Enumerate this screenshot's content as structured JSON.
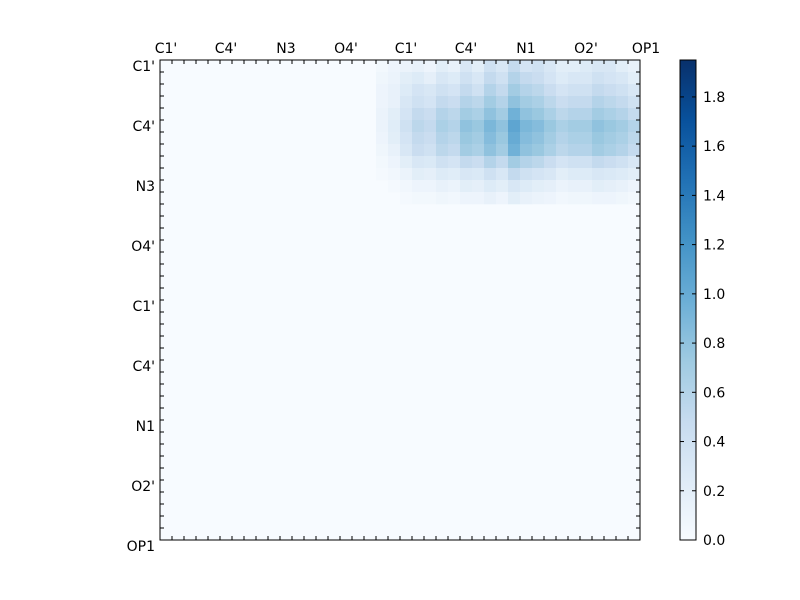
{
  "chart_data": {
    "type": "heatmap",
    "x_tick_labels": [
      "C1'",
      "C4'",
      "N3",
      "O4'",
      "C1'",
      "C4'",
      "N1",
      "O2'",
      "OP1"
    ],
    "y_tick_labels": [
      "C1'",
      "C4'",
      "N3",
      "O4'",
      "C1'",
      "C4'",
      "N1",
      "O2'",
      "OP1"
    ],
    "grid_size": 40,
    "colorbar": {
      "ticks": [
        "0.0",
        "0.2",
        "0.4",
        "0.6",
        "0.8",
        "1.0",
        "1.2",
        "1.4",
        "1.6",
        "1.8"
      ],
      "range": [
        0,
        1.95
      ]
    },
    "colormap": [
      "#f7fbff",
      "#deebf7",
      "#c6dbef",
      "#9ecae1",
      "#6baed6",
      "#4292c6",
      "#2171b5",
      "#08519c",
      "#08306b"
    ],
    "matrix": [
      [
        0,
        0,
        0,
        0,
        0,
        0,
        0,
        0,
        0,
        0,
        0,
        0,
        0,
        0,
        0,
        0,
        0,
        0,
        0.05,
        0.1,
        0.12,
        0.15,
        0.1,
        0.2,
        0.15,
        0.3,
        0.2,
        0.4,
        0.3,
        0.5,
        0.35,
        0.4,
        0.3,
        0.2,
        0.2,
        0.25,
        0.3,
        0.3,
        0.2,
        0.15
      ],
      [
        0,
        0,
        0,
        0,
        0,
        0,
        0,
        0,
        0,
        0,
        0,
        0,
        0,
        0,
        0,
        0,
        0,
        0,
        0.08,
        0.12,
        0.2,
        0.25,
        0.18,
        0.3,
        0.25,
        0.4,
        0.3,
        0.5,
        0.4,
        0.6,
        0.5,
        0.45,
        0.35,
        0.25,
        0.3,
        0.3,
        0.4,
        0.35,
        0.3,
        0.2
      ],
      [
        0,
        0,
        0,
        0,
        0,
        0,
        0,
        0,
        0,
        0,
        0,
        0,
        0,
        0,
        0,
        0,
        0,
        0,
        0.1,
        0.15,
        0.25,
        0.35,
        0.3,
        0.4,
        0.35,
        0.5,
        0.4,
        0.6,
        0.5,
        0.7,
        0.6,
        0.55,
        0.45,
        0.35,
        0.4,
        0.4,
        0.5,
        0.45,
        0.4,
        0.3
      ],
      [
        0,
        0,
        0,
        0,
        0,
        0,
        0,
        0,
        0,
        0,
        0,
        0,
        0,
        0,
        0,
        0,
        0,
        0,
        0.1,
        0.15,
        0.3,
        0.4,
        0.35,
        0.5,
        0.45,
        0.6,
        0.55,
        0.7,
        0.6,
        0.8,
        0.7,
        0.65,
        0.55,
        0.45,
        0.5,
        0.5,
        0.6,
        0.55,
        0.5,
        0.4
      ],
      [
        0,
        0,
        0,
        0,
        0,
        0,
        0,
        0,
        0,
        0,
        0,
        0,
        0,
        0,
        0,
        0,
        0,
        0,
        0.12,
        0.2,
        0.35,
        0.5,
        0.45,
        0.6,
        0.55,
        0.7,
        0.65,
        0.8,
        0.7,
        0.95,
        0.8,
        0.75,
        0.65,
        0.55,
        0.6,
        0.6,
        0.7,
        0.65,
        0.6,
        0.5
      ],
      [
        0,
        0,
        0,
        0,
        0,
        0,
        0,
        0,
        0,
        0,
        0,
        0,
        0,
        0,
        0,
        0,
        0,
        0,
        0.12,
        0.22,
        0.4,
        0.55,
        0.5,
        0.65,
        0.6,
        0.8,
        0.75,
        0.9,
        0.8,
        1.05,
        0.9,
        0.85,
        0.75,
        0.65,
        0.7,
        0.7,
        0.8,
        0.75,
        0.7,
        0.6
      ],
      [
        0,
        0,
        0,
        0,
        0,
        0,
        0,
        0,
        0,
        0,
        0,
        0,
        0,
        0,
        0,
        0,
        0,
        0,
        0.1,
        0.2,
        0.35,
        0.5,
        0.45,
        0.6,
        0.55,
        0.75,
        0.7,
        0.85,
        0.75,
        1.0,
        0.85,
        0.8,
        0.7,
        0.6,
        0.65,
        0.65,
        0.75,
        0.7,
        0.65,
        0.55
      ],
      [
        0,
        0,
        0,
        0,
        0,
        0,
        0,
        0,
        0,
        0,
        0,
        0,
        0,
        0,
        0,
        0,
        0,
        0,
        0.08,
        0.15,
        0.3,
        0.45,
        0.4,
        0.55,
        0.5,
        0.7,
        0.65,
        0.8,
        0.7,
        0.95,
        0.8,
        0.75,
        0.65,
        0.55,
        0.6,
        0.6,
        0.7,
        0.65,
        0.6,
        0.5
      ],
      [
        0,
        0,
        0,
        0,
        0,
        0,
        0,
        0,
        0,
        0,
        0,
        0,
        0,
        0,
        0,
        0,
        0,
        0,
        0.05,
        0.1,
        0.2,
        0.3,
        0.28,
        0.4,
        0.35,
        0.5,
        0.45,
        0.6,
        0.5,
        0.7,
        0.6,
        0.55,
        0.45,
        0.35,
        0.4,
        0.4,
        0.5,
        0.45,
        0.4,
        0.3
      ],
      [
        0,
        0,
        0,
        0,
        0,
        0,
        0,
        0,
        0,
        0,
        0,
        0,
        0,
        0,
        0,
        0,
        0,
        0,
        0.03,
        0.06,
        0.12,
        0.2,
        0.18,
        0.25,
        0.22,
        0.3,
        0.28,
        0.4,
        0.3,
        0.5,
        0.4,
        0.35,
        0.3,
        0.2,
        0.25,
        0.25,
        0.3,
        0.28,
        0.25,
        0.2
      ],
      [
        0,
        0,
        0,
        0,
        0,
        0,
        0,
        0,
        0,
        0,
        0,
        0,
        0,
        0,
        0,
        0,
        0,
        0,
        0,
        0.03,
        0.06,
        0.1,
        0.1,
        0.15,
        0.12,
        0.2,
        0.18,
        0.25,
        0.2,
        0.3,
        0.25,
        0.2,
        0.18,
        0.12,
        0.15,
        0.15,
        0.2,
        0.18,
        0.15,
        0.1
      ],
      [
        0,
        0,
        0,
        0,
        0,
        0,
        0,
        0,
        0,
        0,
        0,
        0,
        0,
        0,
        0,
        0,
        0,
        0,
        0,
        0,
        0.03,
        0.05,
        0.05,
        0.08,
        0.06,
        0.1,
        0.1,
        0.15,
        0.1,
        0.2,
        0.15,
        0.12,
        0.1,
        0.06,
        0.08,
        0.08,
        0.1,
        0.1,
        0.08,
        0.05
      ],
      [
        0,
        0,
        0,
        0,
        0,
        0,
        0,
        0,
        0,
        0,
        0,
        0,
        0,
        0,
        0,
        0,
        0,
        0,
        0,
        0,
        0,
        0,
        0,
        0,
        0,
        0,
        0,
        0,
        0,
        0,
        0,
        0,
        0,
        0,
        0,
        0,
        0,
        0,
        0,
        0
      ],
      [
        0,
        0,
        0,
        0,
        0,
        0,
        0,
        0,
        0,
        0,
        0,
        0,
        0,
        0,
        0,
        0,
        0,
        0,
        0,
        0,
        0,
        0,
        0,
        0,
        0,
        0,
        0,
        0,
        0,
        0,
        0,
        0,
        0,
        0,
        0,
        0,
        0,
        0,
        0,
        0
      ],
      [
        0,
        0,
        0,
        0,
        0,
        0,
        0,
        0,
        0,
        0,
        0,
        0,
        0,
        0,
        0,
        0,
        0,
        0,
        0,
        0,
        0,
        0,
        0,
        0,
        0,
        0,
        0,
        0,
        0,
        0,
        0,
        0,
        0,
        0,
        0,
        0,
        0,
        0,
        0,
        0
      ],
      [
        0,
        0,
        0,
        0,
        0,
        0,
        0,
        0,
        0,
        0,
        0,
        0,
        0,
        0,
        0,
        0,
        0,
        0,
        0,
        0,
        0,
        0,
        0,
        0,
        0,
        0,
        0,
        0,
        0,
        0,
        0,
        0,
        0,
        0,
        0,
        0,
        0,
        0,
        0,
        0
      ],
      [
        0,
        0,
        0,
        0,
        0,
        0,
        0,
        0,
        0,
        0,
        0,
        0,
        0,
        0,
        0,
        0,
        0,
        0,
        0,
        0,
        0,
        0,
        0,
        0,
        0,
        0,
        0,
        0,
        0,
        0,
        0,
        0,
        0,
        0,
        0,
        0,
        0,
        0,
        0,
        0
      ],
      [
        0,
        0,
        0,
        0,
        0,
        0,
        0,
        0,
        0,
        0,
        0,
        0,
        0,
        0,
        0,
        0,
        0,
        0,
        0,
        0,
        0,
        0,
        0,
        0,
        0,
        0,
        0,
        0,
        0,
        0,
        0,
        0,
        0,
        0,
        0,
        0,
        0,
        0,
        0,
        0
      ],
      [
        0,
        0,
        0,
        0,
        0,
        0,
        0,
        0,
        0,
        0,
        0,
        0,
        0,
        0,
        0,
        0,
        0,
        0,
        0,
        0,
        0,
        0,
        0,
        0,
        0,
        0,
        0,
        0,
        0,
        0,
        0,
        0,
        0,
        0,
        0,
        0,
        0,
        0,
        0,
        0
      ],
      [
        0,
        0,
        0,
        0,
        0,
        0,
        0,
        0,
        0,
        0,
        0,
        0,
        0,
        0,
        0,
        0,
        0,
        0,
        0,
        0,
        0,
        0,
        0,
        0,
        0,
        0,
        0,
        0,
        0,
        0,
        0,
        0,
        0,
        0,
        0,
        0,
        0,
        0,
        0,
        0
      ],
      [
        0,
        0,
        0,
        0,
        0,
        0,
        0,
        0,
        0,
        0,
        0,
        0,
        0,
        0,
        0,
        0,
        0,
        0,
        0,
        0,
        0,
        0,
        0,
        0,
        0,
        0,
        0,
        0,
        0,
        0,
        0,
        0,
        0,
        0,
        0,
        0,
        0,
        0,
        0,
        0
      ],
      [
        0,
        0,
        0,
        0,
        0,
        0,
        0,
        0,
        0,
        0,
        0,
        0,
        0,
        0,
        0,
        0,
        0,
        0,
        0,
        0,
        0,
        0,
        0,
        0,
        0,
        0,
        0,
        0,
        0,
        0,
        0,
        0,
        0,
        0,
        0,
        0,
        0,
        0,
        0,
        0
      ],
      [
        0,
        0,
        0,
        0,
        0,
        0,
        0,
        0,
        0,
        0,
        0,
        0,
        0,
        0,
        0,
        0,
        0,
        0,
        0,
        0,
        0,
        0,
        0,
        0,
        0,
        0,
        0,
        0,
        0,
        0,
        0,
        0,
        0,
        0,
        0,
        0,
        0,
        0,
        0,
        0
      ],
      [
        0,
        0,
        0,
        0,
        0,
        0,
        0,
        0,
        0,
        0,
        0,
        0,
        0,
        0,
        0,
        0,
        0,
        0,
        0,
        0,
        0,
        0,
        0,
        0,
        0,
        0,
        0,
        0,
        0,
        0,
        0,
        0,
        0,
        0,
        0,
        0,
        0,
        0,
        0,
        0
      ],
      [
        0,
        0,
        0,
        0,
        0,
        0,
        0,
        0,
        0,
        0,
        0,
        0,
        0,
        0,
        0,
        0,
        0,
        0,
        0,
        0,
        0,
        0,
        0,
        0,
        0,
        0,
        0,
        0,
        0,
        0,
        0,
        0,
        0,
        0,
        0,
        0,
        0,
        0,
        0,
        0
      ],
      [
        0,
        0,
        0,
        0,
        0,
        0,
        0,
        0,
        0,
        0,
        0,
        0,
        0,
        0,
        0,
        0,
        0,
        0,
        0,
        0,
        0,
        0,
        0,
        0,
        0,
        0,
        0,
        0,
        0,
        0,
        0,
        0,
        0,
        0,
        0,
        0,
        0,
        0,
        0,
        0
      ],
      [
        0,
        0,
        0,
        0,
        0,
        0,
        0,
        0,
        0,
        0,
        0,
        0,
        0,
        0,
        0,
        0,
        0,
        0,
        0,
        0,
        0,
        0,
        0,
        0,
        0,
        0,
        0,
        0,
        0,
        0,
        0,
        0,
        0,
        0,
        0,
        0,
        0,
        0,
        0,
        0
      ],
      [
        0,
        0,
        0,
        0,
        0,
        0,
        0,
        0,
        0,
        0,
        0,
        0,
        0,
        0,
        0,
        0,
        0,
        0,
        0,
        0,
        0,
        0,
        0,
        0,
        0,
        0,
        0,
        0,
        0,
        0,
        0,
        0,
        0,
        0,
        0,
        0,
        0,
        0,
        0,
        0
      ],
      [
        0,
        0,
        0,
        0,
        0,
        0,
        0,
        0,
        0,
        0,
        0,
        0,
        0,
        0,
        0,
        0,
        0,
        0,
        0,
        0,
        0,
        0,
        0,
        0,
        0,
        0,
        0,
        0,
        0,
        0,
        0,
        0,
        0,
        0,
        0,
        0,
        0,
        0,
        0,
        0
      ],
      [
        0,
        0,
        0,
        0,
        0,
        0,
        0,
        0,
        0,
        0,
        0,
        0,
        0,
        0,
        0,
        0,
        0,
        0,
        0,
        0,
        0,
        0,
        0,
        0,
        0,
        0,
        0,
        0,
        0,
        0,
        0,
        0,
        0,
        0,
        0,
        0,
        0,
        0,
        0,
        0
      ],
      [
        0,
        0,
        0,
        0,
        0,
        0,
        0,
        0,
        0,
        0,
        0,
        0,
        0,
        0,
        0,
        0,
        0,
        0,
        0,
        0,
        0,
        0,
        0,
        0,
        0,
        0,
        0,
        0,
        0,
        0,
        0,
        0,
        0,
        0,
        0,
        0,
        0,
        0,
        0,
        0
      ],
      [
        0,
        0,
        0,
        0,
        0,
        0,
        0,
        0,
        0,
        0,
        0,
        0,
        0,
        0,
        0,
        0,
        0,
        0,
        0,
        0,
        0,
        0,
        0,
        0,
        0,
        0,
        0,
        0,
        0,
        0,
        0,
        0,
        0,
        0,
        0,
        0,
        0,
        0,
        0,
        0
      ],
      [
        0,
        0,
        0,
        0,
        0,
        0,
        0,
        0,
        0,
        0,
        0,
        0,
        0,
        0,
        0,
        0,
        0,
        0,
        0,
        0,
        0,
        0,
        0,
        0,
        0,
        0,
        0,
        0,
        0,
        0,
        0,
        0,
        0,
        0,
        0,
        0,
        0,
        0,
        0,
        0
      ],
      [
        0,
        0,
        0,
        0,
        0,
        0,
        0,
        0,
        0,
        0,
        0,
        0,
        0,
        0,
        0,
        0,
        0,
        0,
        0,
        0,
        0,
        0,
        0,
        0,
        0,
        0,
        0,
        0,
        0,
        0,
        0,
        0,
        0,
        0,
        0,
        0,
        0,
        0,
        0,
        0
      ],
      [
        0,
        0,
        0,
        0,
        0,
        0,
        0,
        0,
        0,
        0,
        0,
        0,
        0,
        0,
        0,
        0,
        0,
        0,
        0,
        0,
        0,
        0,
        0,
        0,
        0,
        0,
        0,
        0,
        0,
        0,
        0,
        0,
        0,
        0,
        0,
        0,
        0,
        0,
        0,
        0
      ],
      [
        0,
        0,
        0,
        0,
        0,
        0,
        0,
        0,
        0,
        0,
        0,
        0,
        0,
        0,
        0,
        0,
        0,
        0,
        0,
        0,
        0,
        0,
        0,
        0,
        0,
        0,
        0,
        0,
        0,
        0,
        0,
        0,
        0,
        0,
        0,
        0,
        0,
        0,
        0,
        0
      ],
      [
        0,
        0,
        0,
        0,
        0,
        0,
        0,
        0,
        0,
        0,
        0,
        0,
        0,
        0,
        0,
        0,
        0,
        0,
        0,
        0,
        0,
        0,
        0,
        0,
        0,
        0,
        0,
        0,
        0,
        0,
        0,
        0,
        0,
        0,
        0,
        0,
        0,
        0,
        0,
        0
      ],
      [
        0,
        0,
        0,
        0,
        0,
        0,
        0,
        0,
        0,
        0,
        0,
        0,
        0,
        0,
        0,
        0,
        0,
        0,
        0,
        0,
        0,
        0,
        0,
        0,
        0,
        0,
        0,
        0,
        0,
        0,
        0,
        0,
        0,
        0,
        0,
        0,
        0,
        0,
        0,
        0
      ],
      [
        0,
        0,
        0,
        0,
        0,
        0,
        0,
        0,
        0,
        0,
        0,
        0,
        0,
        0,
        0,
        0,
        0,
        0,
        0,
        0,
        0,
        0,
        0,
        0,
        0,
        0,
        0,
        0,
        0,
        0,
        0,
        0,
        0,
        0,
        0,
        0,
        0,
        0,
        0,
        0
      ],
      [
        0,
        0,
        0,
        0,
        0,
        0,
        0,
        0,
        0,
        0,
        0,
        0,
        0,
        0,
        0,
        0,
        0,
        0,
        0,
        0,
        0,
        0,
        0,
        0,
        0,
        0,
        0,
        0,
        0,
        0,
        0,
        0,
        0,
        0,
        0,
        0,
        0,
        0,
        0,
        0
      ]
    ]
  }
}
